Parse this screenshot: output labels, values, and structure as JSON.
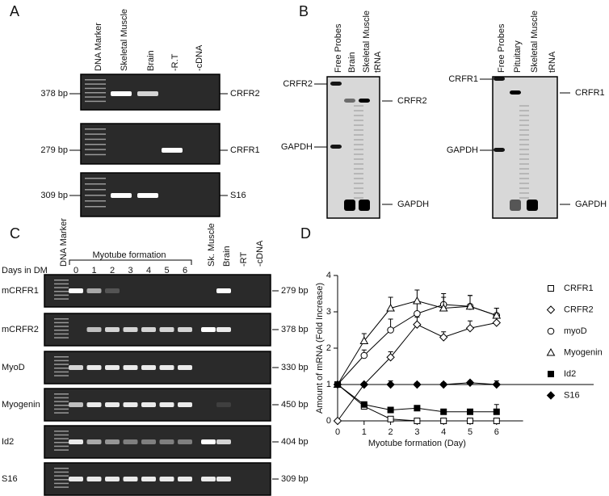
{
  "panel_a": {
    "label": "A",
    "lanes": [
      "DNA Marker",
      "Skeletal Muscle",
      "Brain",
      "-R.T",
      "-cDNA"
    ],
    "rows": [
      {
        "size": "378 bp",
        "gene": "CRFR2"
      },
      {
        "size": "279 bp",
        "gene": "CRFR1"
      },
      {
        "size": "309 bp",
        "gene": "S16"
      }
    ]
  },
  "panel_b": {
    "label": "B",
    "blots": [
      {
        "lanes": [
          "Free Probes",
          "Brain",
          "Skeletal Muscle",
          "tRNA"
        ],
        "left": [
          "CRFR2",
          "GAPDH"
        ],
        "right": [
          "CRFR2",
          "GAPDH"
        ]
      },
      {
        "lanes": [
          "Free Probes",
          "Pituitary",
          "Skeletal Muscle",
          "tRNA"
        ],
        "left": [
          "CRFR1",
          "GAPDH"
        ],
        "right": [
          "CRFR1",
          "GAPDH"
        ]
      }
    ]
  },
  "panel_c": {
    "label": "C",
    "days_label": "Days in DM",
    "group_label": "Myotube formation",
    "marker": "DNA Marker",
    "days": [
      "0",
      "1",
      "2",
      "3",
      "4",
      "5",
      "6"
    ],
    "controls": [
      "Sk. Muscle",
      "Brain",
      "-RT",
      "-cDNA"
    ],
    "rows": [
      {
        "gene": "mCRFR1",
        "size": "279 bp"
      },
      {
        "gene": "mCRFR2",
        "size": "378 bp"
      },
      {
        "gene": "MyoD",
        "size": "330 bp"
      },
      {
        "gene": "Myogenin",
        "size": "450 bp"
      },
      {
        "gene": "Id2",
        "size": "404 bp"
      },
      {
        "gene": "S16",
        "size": "309 bp"
      }
    ]
  },
  "panel_d": {
    "label": "D",
    "chart_data": {
      "type": "line",
      "x_label": "Myotube formation (Day)",
      "y_label": "Amount of mRNA (Fold Increase)",
      "x": [
        0,
        1,
        2,
        3,
        4,
        5,
        6
      ],
      "xlim": [
        0,
        7
      ],
      "xticks": [
        0,
        1,
        2,
        3,
        4,
        5,
        6
      ],
      "ylim": [
        0,
        4
      ],
      "yticks": [
        0,
        1,
        2,
        3,
        4
      ],
      "series": [
        {
          "name": "CRFR1",
          "color": "#000000",
          "marker": "square",
          "filled": false,
          "values": [
            1,
            0.4,
            0.05,
            0,
            0,
            0,
            0
          ],
          "errors": [
            0,
            0,
            0,
            0,
            0,
            0,
            0
          ]
        },
        {
          "name": "CRFR2",
          "color": "#000000",
          "marker": "diamond",
          "filled": false,
          "values": [
            0,
            1.0,
            1.75,
            2.65,
            2.3,
            2.55,
            2.7
          ],
          "errors": [
            0,
            0,
            0.15,
            0.2,
            0.15,
            0.2,
            0.15
          ]
        },
        {
          "name": "myoD",
          "color": "#000000",
          "marker": "circle",
          "filled": false,
          "values": [
            1,
            1.8,
            2.5,
            2.95,
            3.2,
            3.15,
            2.9
          ],
          "errors": [
            0,
            0.15,
            0.3,
            0.35,
            0.2,
            0.3,
            0.2
          ]
        },
        {
          "name": "Myogenin",
          "color": "#000000",
          "marker": "triangle",
          "filled": false,
          "values": [
            1,
            2.2,
            3.1,
            3.3,
            3.1,
            3.15,
            2.9
          ],
          "errors": [
            0,
            0.2,
            0.3,
            0.3,
            0.4,
            0.3,
            0.2
          ]
        },
        {
          "name": "Id2",
          "color": "#000000",
          "marker": "square",
          "filled": true,
          "values": [
            1,
            0.45,
            0.3,
            0.35,
            0.25,
            0.25,
            0.25
          ],
          "errors": [
            0,
            0.05,
            0.05,
            0.05,
            0.05,
            0.05,
            0.2
          ]
        },
        {
          "name": "S16",
          "color": "#000000",
          "marker": "diamond",
          "filled": true,
          "values": [
            1,
            1,
            1,
            1,
            1,
            1.05,
            1
          ],
          "errors": [
            0,
            0,
            0.1,
            0.05,
            0.05,
            0.05,
            0.1
          ]
        }
      ]
    }
  }
}
